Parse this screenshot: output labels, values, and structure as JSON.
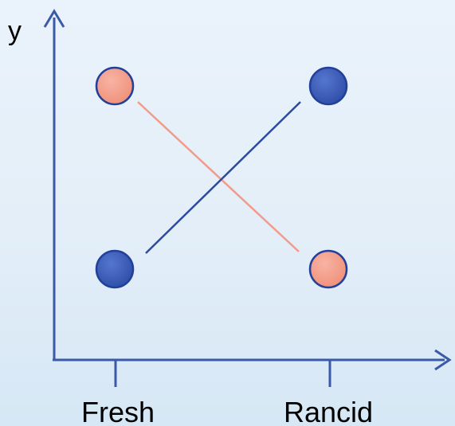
{
  "axes": {
    "y_label": "y",
    "x_categories": [
      "Fresh",
      "Rancid"
    ]
  },
  "colors": {
    "axis": "#3a5aa8",
    "blue_marker": "#3d5cb5",
    "pink_marker": "#f4a08f",
    "blue_line": "#2c4a9e",
    "pink_line": "#f29b8b",
    "marker_outline": "#22409a"
  }
}
